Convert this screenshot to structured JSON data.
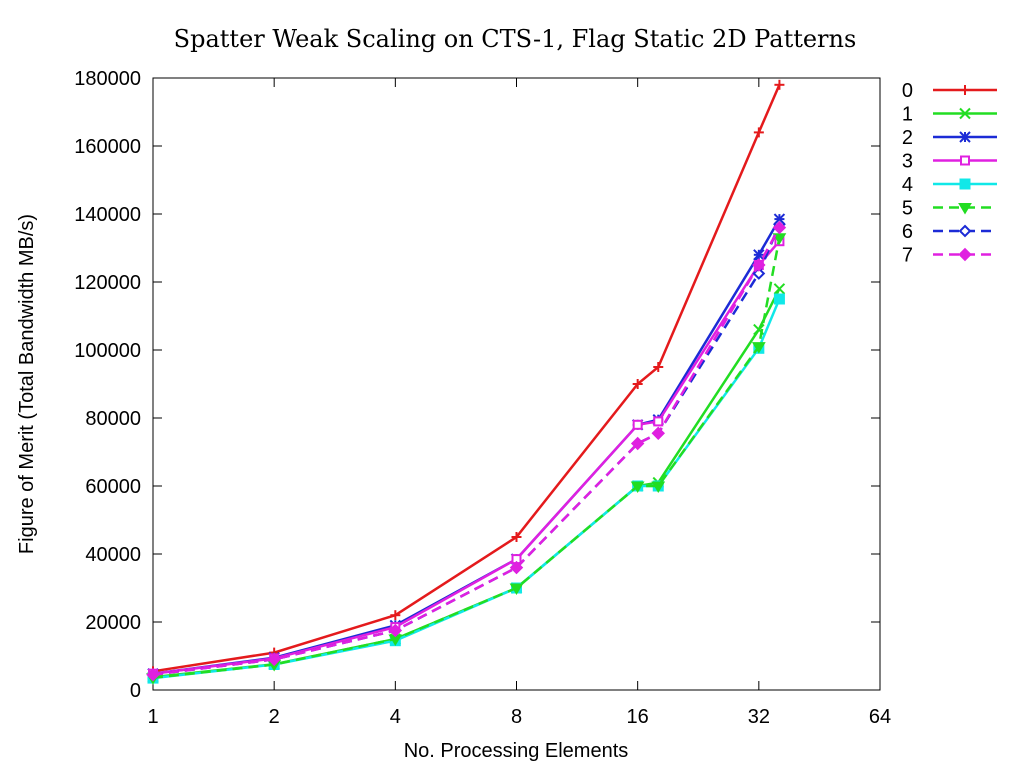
{
  "chart_data": {
    "type": "line",
    "title": "Spatter Weak Scaling on CTS-1, Flag Static 2D Patterns",
    "xlabel": "No. Processing Elements",
    "ylabel": "Figure of Merit (Total Bandwidth MB/s)",
    "xscale": "log2",
    "xlim": [
      1,
      64
    ],
    "ylim": [
      0,
      180000
    ],
    "xticks": [
      1,
      2,
      4,
      8,
      16,
      32,
      64
    ],
    "xtick_labels": [
      "1",
      "2",
      "4",
      "8",
      "16",
      "32",
      "64"
    ],
    "yticks": [
      0,
      20000,
      40000,
      60000,
      80000,
      100000,
      120000,
      140000,
      160000,
      180000
    ],
    "ytick_labels": [
      "0",
      "20000",
      "40000",
      "60000",
      "80000",
      "100000",
      "120000",
      "140000",
      "160000",
      "180000"
    ],
    "grid": false,
    "legend_position": "right-outside-top",
    "x": [
      1,
      2,
      4,
      8,
      16,
      18,
      32,
      36
    ],
    "series": [
      {
        "name": "0",
        "color": "#e41a1c",
        "dash": "solid",
        "marker": "plus",
        "values": [
          5500,
          11000,
          22000,
          45000,
          90000,
          95000,
          164000,
          178000
        ]
      },
      {
        "name": "1",
        "color": "#22dd22",
        "dash": "solid",
        "marker": "x",
        "values": [
          3800,
          7600,
          15000,
          30000,
          60000,
          61000,
          106000,
          118000
        ]
      },
      {
        "name": "2",
        "color": "#1c2bd6",
        "dash": "solid",
        "marker": "star",
        "values": [
          4800,
          9500,
          19000,
          38500,
          78000,
          79500,
          128000,
          138500
        ]
      },
      {
        "name": "3",
        "color": "#e020e0",
        "dash": "solid",
        "marker": "square-open",
        "values": [
          4800,
          9300,
          18500,
          38500,
          78000,
          79000,
          125000,
          132000
        ]
      },
      {
        "name": "4",
        "color": "#10e8e8",
        "dash": "solid",
        "marker": "square-filled",
        "values": [
          3500,
          7500,
          14500,
          30000,
          60000,
          60000,
          100500,
          115000
        ]
      },
      {
        "name": "5",
        "color": "#22dd22",
        "dash": "dashed",
        "marker": "triangle-down",
        "values": [
          3600,
          7500,
          15000,
          30000,
          60000,
          60000,
          101000,
          133000
        ]
      },
      {
        "name": "6",
        "color": "#1c2bd6",
        "dash": "dashed",
        "marker": "diamond-open",
        "values": [
          4500,
          9000,
          17500,
          36000,
          72500,
          75500,
          122500,
          137000
        ]
      },
      {
        "name": "7",
        "color": "#e020e0",
        "dash": "dashed",
        "marker": "diamond-filled",
        "values": [
          4500,
          9000,
          17500,
          36000,
          72500,
          75500,
          125000,
          136000
        ]
      }
    ]
  }
}
